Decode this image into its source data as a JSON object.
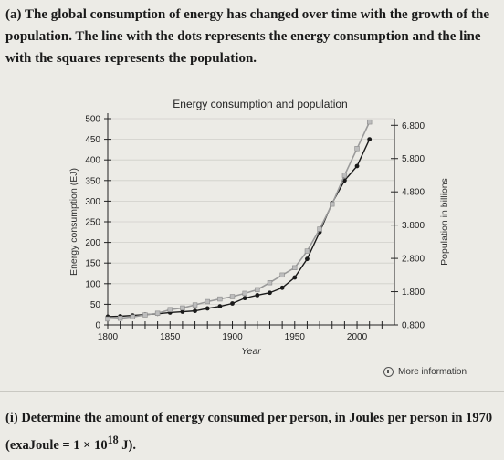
{
  "question": {
    "label": "(a)",
    "text": "The global consumption of energy has changed over time with the growth of the population. The line with the dots represents the energy consumption and the line with the squares represents the population."
  },
  "more_info": "More information",
  "sub_question": {
    "label": "(i)",
    "text": "Determine the amount of energy consumed per person, in Joules per person in 1970 (exaJoule = 1 × 10",
    "exponent": "18",
    "suffix": " J)."
  },
  "chart_data": {
    "type": "line",
    "title": "Energy consumption and population",
    "xlabel": "Year",
    "ylabel": "Energy consumption (EJ)",
    "y2label": "Population in billions",
    "xlim": [
      1800,
      2030
    ],
    "ylim": [
      0,
      500
    ],
    "y2lim": [
      0.8,
      7.0
    ],
    "x_ticks": [
      "1800",
      "1850",
      "1900",
      "1950",
      "2000"
    ],
    "y_ticks": [
      "0",
      "50",
      "100",
      "150",
      "200",
      "250",
      "300",
      "350",
      "400",
      "450",
      "500"
    ],
    "y2_ticks": [
      "0.800",
      "1.800",
      "2.800",
      "3.800",
      "4.800",
      "5.800",
      "6.800"
    ],
    "grid": true,
    "series": [
      {
        "marker": "dot",
        "axis": "left",
        "color": "#1a1a1a",
        "x": [
          1800,
          1810,
          1820,
          1830,
          1840,
          1850,
          1860,
          1870,
          1880,
          1890,
          1900,
          1910,
          1920,
          1930,
          1940,
          1950,
          1960,
          1970,
          1980,
          1990,
          2000,
          2010
        ],
        "y": [
          20,
          21,
          23,
          25,
          27,
          30,
          32,
          34,
          40,
          45,
          52,
          65,
          72,
          78,
          90,
          115,
          160,
          225,
          295,
          350,
          385,
          450
        ]
      },
      {
        "marker": "square",
        "axis": "right",
        "color": "#9a9a9a",
        "x": [
          1800,
          1810,
          1820,
          1830,
          1840,
          1850,
          1860,
          1870,
          1880,
          1890,
          1900,
          1910,
          1920,
          1930,
          1940,
          1950,
          1960,
          1970,
          1980,
          1990,
          2000,
          2010
        ],
        "y": [
          0.98,
          1.0,
          1.04,
          1.1,
          1.15,
          1.26,
          1.31,
          1.4,
          1.5,
          1.58,
          1.65,
          1.75,
          1.86,
          2.07,
          2.3,
          2.52,
          3.02,
          3.68,
          4.43,
          5.3,
          6.1,
          6.9
        ]
      }
    ]
  }
}
